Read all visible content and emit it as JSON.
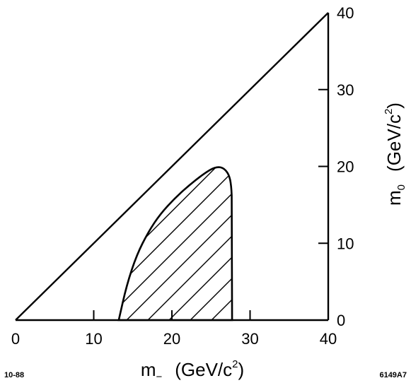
{
  "chart_data": {
    "type": "area",
    "x_axis": {
      "label_main": "m",
      "label_sub": "−",
      "label_unit": "(GeV/c",
      "label_sup": "2",
      "label_close": ")",
      "range": [
        0,
        40
      ],
      "ticks": [
        0,
        10,
        20,
        30,
        40
      ],
      "tick_labels": [
        "0",
        "10",
        "20",
        "30",
        "40"
      ]
    },
    "y_axis": {
      "position": "right",
      "label_main": "m",
      "label_sub": "0",
      "label_unit": "(GeV/c",
      "label_sup": "2",
      "label_close": ")",
      "range": [
        0,
        40
      ],
      "ticks": [
        0,
        10,
        20,
        30,
        40
      ],
      "tick_labels": [
        "0",
        "10",
        "20",
        "30",
        "40"
      ]
    },
    "boundary_line": {
      "x": [
        0,
        40
      ],
      "y": [
        0,
        40
      ]
    },
    "excluded_region": {
      "fill": "hatched",
      "x": [
        13.2,
        14.2,
        15.5,
        17.0,
        18.5,
        20.5,
        22.5,
        24.3,
        25.5,
        26.5,
        27.3,
        27.6,
        27.7,
        27.7
      ],
      "y": [
        0,
        4.5,
        8.5,
        11.5,
        13.8,
        16.0,
        17.8,
        19.2,
        19.9,
        19.9,
        19.0,
        17.5,
        15.0,
        0
      ]
    },
    "footer_left": "10-88",
    "footer_right": "6149A7"
  }
}
